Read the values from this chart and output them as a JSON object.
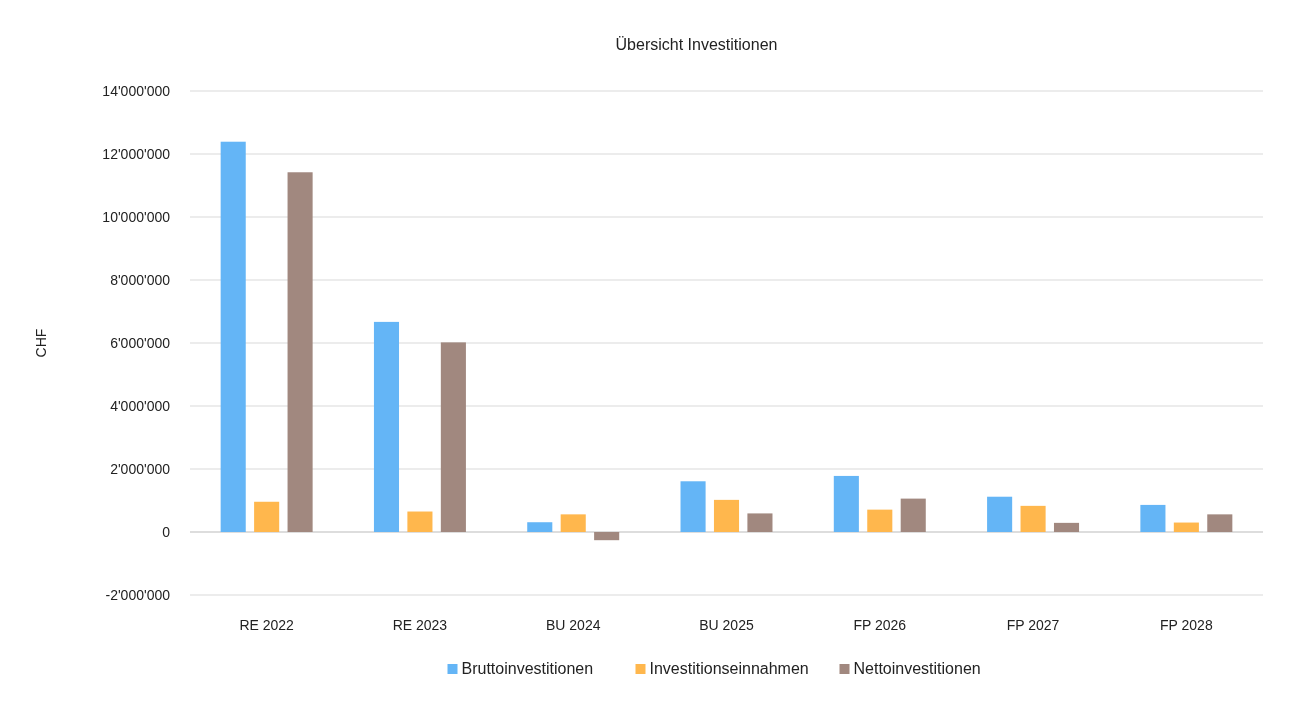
{
  "chart_data": {
    "type": "bar",
    "title": "Übersicht Investitionen",
    "ylabel": "CHF",
    "categories": [
      "RE 2022",
      "RE 2023",
      "BU 2024",
      "BU 2025",
      "FP 2026",
      "FP 2027",
      "FP 2028"
    ],
    "series": [
      {
        "name": "Bruttoinvestitionen",
        "color": "#64b5f6",
        "values": [
          12390000,
          6670000,
          310000,
          1610000,
          1780000,
          1120000,
          860000
        ]
      },
      {
        "name": "Investitionseinnahmen",
        "color": "#ffb74d",
        "values": [
          960000,
          650000,
          560000,
          1020000,
          710000,
          830000,
          300000
        ]
      },
      {
        "name": "Nettoinvestitionen",
        "color": "#a1887f",
        "values": [
          11420000,
          6020000,
          -260000,
          590000,
          1060000,
          290000,
          560000
        ]
      }
    ],
    "ylim": [
      -2000000,
      14000000
    ],
    "yticks": [
      {
        "value": -2000000,
        "label": "-2'000'000"
      },
      {
        "value": 0,
        "label": "0"
      },
      {
        "value": 2000000,
        "label": "2'000'000"
      },
      {
        "value": 4000000,
        "label": "4'000'000"
      },
      {
        "value": 6000000,
        "label": "6'000'000"
      },
      {
        "value": 8000000,
        "label": "8'000'000"
      },
      {
        "value": 10000000,
        "label": "10'000'000"
      },
      {
        "value": 12000000,
        "label": "12'000'000"
      },
      {
        "value": 14000000,
        "label": "14'000'000"
      }
    ],
    "grid": "y",
    "legend": "bottom"
  }
}
